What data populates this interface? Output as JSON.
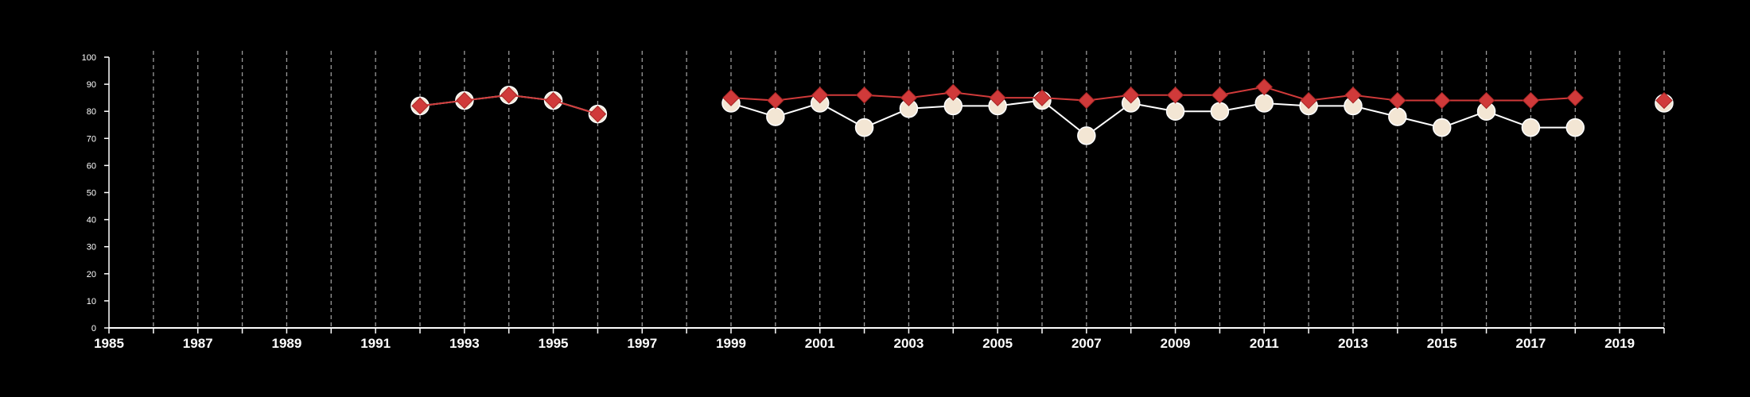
{
  "chart_data": {
    "type": "line",
    "title": "",
    "xlabel": "",
    "ylabel": "",
    "xlim": [
      1985,
      2020
    ],
    "ylim": [
      0,
      100
    ],
    "x_ticks": [
      "1985",
      "1987",
      "1989",
      "1991",
      "1993",
      "1995",
      "1997",
      "1999",
      "2001",
      "2003",
      "2005",
      "2007",
      "2009",
      "2011",
      "2013",
      "2015",
      "2017",
      "2019"
    ],
    "y_ticks": [
      "0",
      "10",
      "20",
      "30",
      "40",
      "50",
      "60",
      "70",
      "80",
      "90",
      "100"
    ],
    "vertical_grid": "dashed line at every year",
    "legend": "none",
    "series": [
      {
        "marker": "circle",
        "color": "#f3e6d4",
        "points": [
          [
            1992,
            82
          ],
          [
            1993,
            84
          ],
          [
            1994,
            86
          ],
          [
            1995,
            84
          ],
          [
            1996,
            79
          ],
          [
            1999,
            83
          ],
          [
            2000,
            78
          ],
          [
            2001,
            83
          ],
          [
            2002,
            74
          ],
          [
            2003,
            81
          ],
          [
            2004,
            82
          ],
          [
            2005,
            82
          ],
          [
            2006,
            84
          ],
          [
            2007,
            71
          ],
          [
            2008,
            83
          ],
          [
            2009,
            80
          ],
          [
            2010,
            80
          ],
          [
            2011,
            83
          ],
          [
            2012,
            82
          ],
          [
            2013,
            82
          ],
          [
            2014,
            78
          ],
          [
            2015,
            74
          ],
          [
            2016,
            80
          ],
          [
            2017,
            74
          ],
          [
            2018,
            74
          ],
          [
            2020,
            83
          ]
        ]
      },
      {
        "marker": "diamond",
        "color": "#d03a3a",
        "points": [
          [
            1992,
            82
          ],
          [
            1993,
            84
          ],
          [
            1994,
            86
          ],
          [
            1995,
            84
          ],
          [
            1996,
            79
          ],
          [
            1999,
            85
          ],
          [
            2000,
            84
          ],
          [
            2001,
            86
          ],
          [
            2002,
            86
          ],
          [
            2003,
            85
          ],
          [
            2004,
            87
          ],
          [
            2005,
            85
          ],
          [
            2006,
            85
          ],
          [
            2007,
            84
          ],
          [
            2008,
            86
          ],
          [
            2009,
            86
          ],
          [
            2010,
            86
          ],
          [
            2011,
            89
          ],
          [
            2012,
            84
          ],
          [
            2013,
            86
          ],
          [
            2014,
            84
          ],
          [
            2015,
            84
          ],
          [
            2016,
            84
          ],
          [
            2017,
            84
          ],
          [
            2018,
            85
          ],
          [
            2020,
            84
          ]
        ]
      }
    ]
  }
}
